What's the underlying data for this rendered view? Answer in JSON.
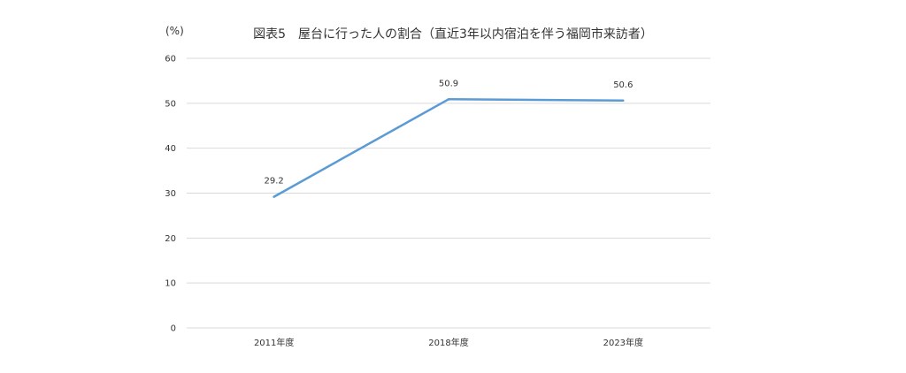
{
  "chart_data": {
    "type": "line",
    "title": "図表5　屋台に行った人の割合（直近3年以内宿泊を伴う福岡市来訪者）",
    "ylabel": "(%)",
    "xlabel": "",
    "categories": [
      "2011年度",
      "2018年度",
      "2023年度"
    ],
    "series": [
      {
        "values": [
          29.2,
          50.9,
          50.6
        ]
      }
    ],
    "ylim": [
      0,
      60
    ],
    "yticks": [
      0,
      10,
      20,
      30,
      40,
      50,
      60
    ],
    "grid": true,
    "legend": "none",
    "colors": {
      "series": "#5b9bd5",
      "grid": "#d9d9d9"
    }
  }
}
